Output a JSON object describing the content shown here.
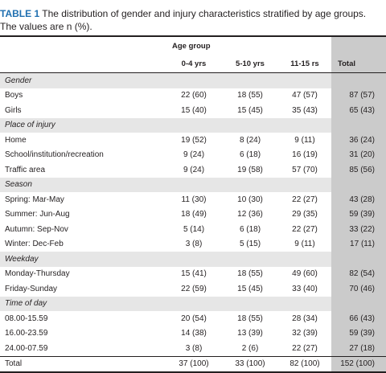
{
  "caption": {
    "label": "TABLE 1",
    "text": " The distribution of gender and injury characteristics stratified by age groups. The values are n (%)."
  },
  "header": {
    "group_label": "Age group",
    "columns": [
      "0-4 yrs",
      "5-10 yrs",
      "11-15 rs"
    ],
    "total_label": "Total"
  },
  "rows": [
    {
      "type": "section",
      "label": "Gender",
      "shade": true
    },
    {
      "type": "data",
      "label": "Boys",
      "values": [
        "22 (60)",
        "18 (55)",
        "47 (57)"
      ],
      "total": "87 (57)",
      "shade": false
    },
    {
      "type": "data",
      "label": "Girls",
      "values": [
        "15 (40)",
        "15 (45)",
        "35 (43)"
      ],
      "total": "65 (43)",
      "shade": false
    },
    {
      "type": "section",
      "label": "Place of injury",
      "shade": true
    },
    {
      "type": "data",
      "label": "Home",
      "values": [
        "19 (52)",
        "8 (24)",
        "9 (11)"
      ],
      "total": "36 (24)",
      "shade": false
    },
    {
      "type": "data",
      "label": "School/institution/recreation",
      "values": [
        "9 (24)",
        "6 (18)",
        "16 (19)"
      ],
      "total": "31 (20)",
      "shade": false
    },
    {
      "type": "data",
      "label": "Traffic area",
      "values": [
        "9 (24)",
        "19 (58)",
        "57 (70)"
      ],
      "total": "85 (56)",
      "shade": false
    },
    {
      "type": "section",
      "label": "Season",
      "shade": true
    },
    {
      "type": "data",
      "label": "Spring: Mar-May",
      "values": [
        "11 (30)",
        "10 (30)",
        "22 (27)"
      ],
      "total": "43 (28)",
      "shade": false
    },
    {
      "type": "data",
      "label": "Summer: Jun-Aug",
      "values": [
        "18 (49)",
        "12 (36)",
        "29 (35)"
      ],
      "total": "59 (39)",
      "shade": false
    },
    {
      "type": "data",
      "label": "Autumn: Sep-Nov",
      "values": [
        "5 (14)",
        "6 (18)",
        "22 (27)"
      ],
      "total": "33 (22)",
      "shade": false
    },
    {
      "type": "data",
      "label": "Winter: Dec-Feb",
      "values": [
        "3 (8)",
        "5 (15)",
        "9 (11)"
      ],
      "total": "17 (11)",
      "shade": false
    },
    {
      "type": "section",
      "label": "Weekday",
      "shade": true
    },
    {
      "type": "data",
      "label": "Monday-Thursday",
      "values": [
        "15 (41)",
        "18 (55)",
        "49 (60)"
      ],
      "total": "82 (54)",
      "shade": false
    },
    {
      "type": "data",
      "label": "Friday-Sunday",
      "values": [
        "22 (59)",
        "15 (45)",
        "33 (40)"
      ],
      "total": "70 (46)",
      "shade": false
    },
    {
      "type": "section",
      "label": "Time of day",
      "shade": true
    },
    {
      "type": "data",
      "label": "08.00-15.59",
      "values": [
        "20 (54)",
        "18 (55)",
        "28 (34)"
      ],
      "total": "66 (43)",
      "shade": false
    },
    {
      "type": "data",
      "label": "16.00-23.59",
      "values": [
        "14 (38)",
        "13 (39)",
        "32 (39)"
      ],
      "total": "59 (39)",
      "shade": false
    },
    {
      "type": "data",
      "label": "24.00-07.59",
      "values": [
        "3 (8)",
        "2 (6)",
        "22 (27)"
      ],
      "total": "27 (18)",
      "shade": false
    },
    {
      "type": "total",
      "label": "Total",
      "values": [
        "37 (100)",
        "33 (100)",
        "82 (100)"
      ],
      "total": "152 (100)",
      "shade": false
    }
  ]
}
